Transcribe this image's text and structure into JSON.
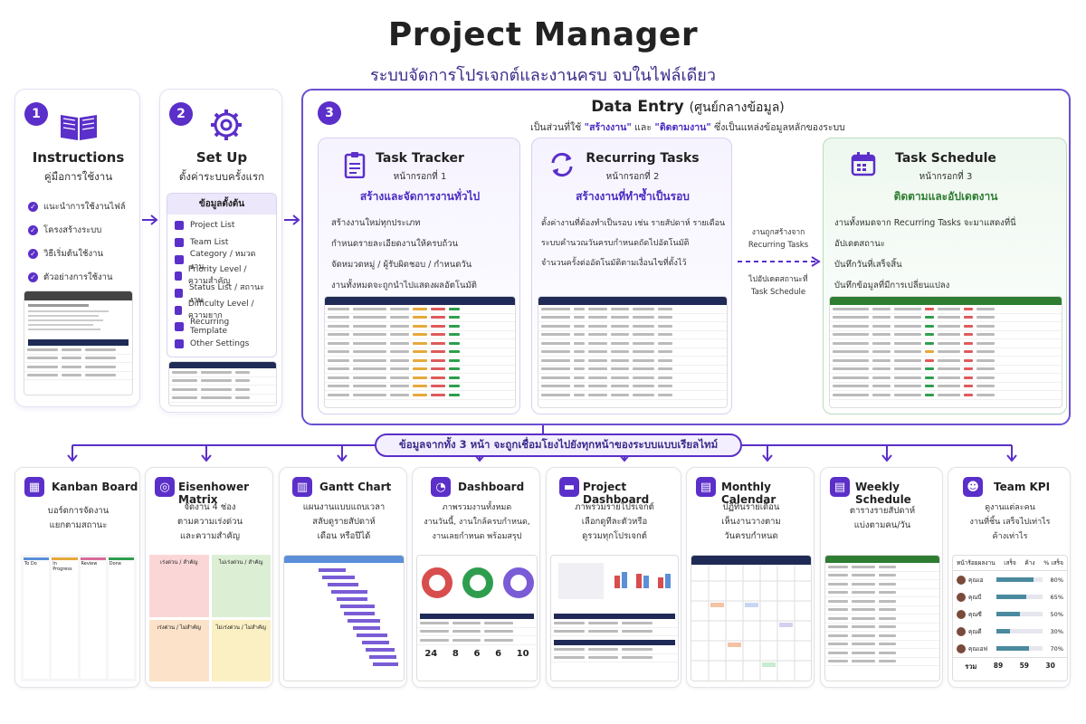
{
  "header": {
    "title": "Project Manager",
    "subtitle": "ระบบจัดการโปรเจกต์และงานครบ จบในไฟล์เดียว"
  },
  "colors": {
    "accent": "#5b2fc9",
    "green": "#2e7d32",
    "navy": "#1f2a56"
  },
  "step1": {
    "num": "1",
    "title": "Instructions",
    "sub": "คู่มือการใช้งาน",
    "icon": "book-icon",
    "items": [
      "แนะนำการใช้งานไฟล์",
      "โครงสร้างระบบ",
      "วิธีเริ่มต้นใช้งาน",
      "ตัวอย่างการใช้งาน"
    ]
  },
  "step2": {
    "num": "2",
    "title": "Set Up",
    "sub": "ตั้งค่าระบบครั้งแรก",
    "icon": "gear-icon",
    "box_title": "ข้อมูลตั้งต้น",
    "items": [
      "Project List",
      "Team List",
      "Category / หมวดงาน",
      "Priority Level / ความสำคัญ",
      "Status List / สถานะงาน",
      "Difficulty Level / ความยาก",
      "Recurring Template",
      "Other Settings"
    ]
  },
  "step3": {
    "num": "3",
    "title": "Data Entry",
    "title_suffix": "(ศูนย์กลางข้อมูล)",
    "desc_pre": "เป็นส่วนที่ใช้",
    "desc_q1": "\"สร้างงาน\"",
    "desc_and": "และ",
    "desc_q2": "\"ติดตามงาน\"",
    "desc_post": "ซึ่งเป็นแหล่งข้อมูลหลักของระบบ"
  },
  "task_tracker": {
    "title": "Task Tracker",
    "sub": "หน้ากรอกที่ 1",
    "accent": "สร้างและจัดการงานทั่วไป",
    "icon": "clipboard-icon",
    "bullets": [
      "สร้างงานใหม่ทุกประเภท",
      "กำหนดรายละเอียดงานให้ครบถ้วน",
      "จัดหมวดหมู่ / ผู้รับผิดชอบ / กำหนดวัน",
      "งานทั้งหมดจะถูกนำไปแสดงผลอัตโนมัติ"
    ]
  },
  "recurring": {
    "title": "Recurring Tasks",
    "sub": "หน้ากรอกที่ 2",
    "accent": "สร้างงานที่ทำซ้ำเป็นรอบ",
    "icon": "repeat-icon",
    "bullets": [
      "ตั้งค่างานที่ต้องทำเป็นรอบ เช่น รายสัปดาห์ รายเดือน",
      "ระบบคำนวณวันครบกำหนดถัดไปอัตโนมัติ",
      "จำนวนครั้งต่ออัตโนมัติตามเงื่อนไขที่ตั้งไว้"
    ]
  },
  "flow": {
    "top1": "งานถูกสร้างจาก",
    "top2": "Recurring Tasks",
    "bot1": "ไปอัปเดตสถานะที่",
    "bot2": "Task Schedule"
  },
  "schedule": {
    "title": "Task Schedule",
    "sub": "หน้ากรอกที่ 3",
    "accent": "ติดตามและอัปเดตงาน",
    "icon": "calendar-icon",
    "bullets": [
      "งานทั้งหมดจาก Recurring Tasks จะมาแสดงที่นี่",
      "อัปเดตสถานะ",
      "บันทึกวันที่เสร็จสิ้น",
      "บันทึกข้อมูลที่มีการเปลี่ยนแปลง"
    ]
  },
  "connector": {
    "label": "ข้อมูลจากทั้ง 3 หน้า จะถูกเชื่อมโยงไปยังทุกหน้าของระบบแบบเรียลไทม์"
  },
  "views": [
    {
      "title": "Kanban Board",
      "line1": "บอร์ดการจัดงาน",
      "line2": "แยกตามสถานะ",
      "line3": "",
      "icon": "kanban-icon"
    },
    {
      "title": "Eisenhower Matrix",
      "line1": "จัดงาน 4 ช่อง",
      "line2": "ตามความเร่งด่วน",
      "line3": "และความสำคัญ",
      "icon": "target-icon"
    },
    {
      "title": "Gantt Chart",
      "line1": "แผนงานแบบแถบเวลา",
      "line2": "สลับดูรายสัปดาห์",
      "line3": "เดือน หรือปีได้",
      "icon": "gantt-icon"
    },
    {
      "title": "Dashboard",
      "line1": "ภาพรวมงานทั้งหมด",
      "line2": "งานวันนี้, งานใกล้ครบกำหนด,",
      "line3": "งานเลยกำหนด พร้อมสรุป",
      "icon": "pie-icon"
    },
    {
      "title": "Project Dashboard",
      "line1": "ภาพรวมรายโปรเจกต์",
      "line2": "เลือกดูทีละตัวหรือ",
      "line3": "ดูรวมทุกโปรเจกต์",
      "icon": "folder-icon"
    },
    {
      "title": "Monthly Calendar",
      "line1": "ปฏิทินรายเดือน",
      "line2": "เห็นงานวางตาม",
      "line3": "วันครบกำหนด",
      "icon": "calendar-icon"
    },
    {
      "title": "Weekly Schedule",
      "line1": "ตารางรายสัปดาห์",
      "line2": "แบ่งตามคน/วัน",
      "line3": "",
      "icon": "calendar-week-icon"
    },
    {
      "title": "Team KPI",
      "line1": "ดูงานแต่ละคน",
      "line2": "งานที่ชิ้น เสร็จไปเท่าไร",
      "line3": "ค้างเท่าไร",
      "icon": "team-icon"
    }
  ],
  "kanban": {
    "cols": [
      "To Do",
      "In Progress",
      "Review",
      "Done"
    ]
  },
  "eisen": {
    "q": [
      "เร่งด่วน / สำคัญ",
      "ไม่เร่งด่วน / สำคัญ",
      "เร่งด่วน / ไม่สำคัญ",
      "ไม่เร่งด่วน / ไม่สำคัญ"
    ]
  },
  "dash": {
    "stats": [
      "24",
      "8",
      "6",
      "6",
      "10"
    ]
  },
  "kpi": {
    "head": [
      "หน้าร้อยผลงาน",
      "เสร็จ",
      "ค้าง",
      "% เสร็จ"
    ],
    "people": [
      {
        "name": "คุณเอ",
        "pct": "80%",
        "fill": 0.8
      },
      {
        "name": "คุณบี",
        "pct": "65%",
        "fill": 0.65
      },
      {
        "name": "คุณซี",
        "pct": "50%",
        "fill": 0.5
      },
      {
        "name": "คุณดี",
        "pct": "30%",
        "fill": 0.3
      },
      {
        "name": "คุณเอฟ",
        "pct": "70%",
        "fill": 0.7
      }
    ],
    "total": [
      "รวม",
      "89",
      "59",
      "30"
    ]
  }
}
